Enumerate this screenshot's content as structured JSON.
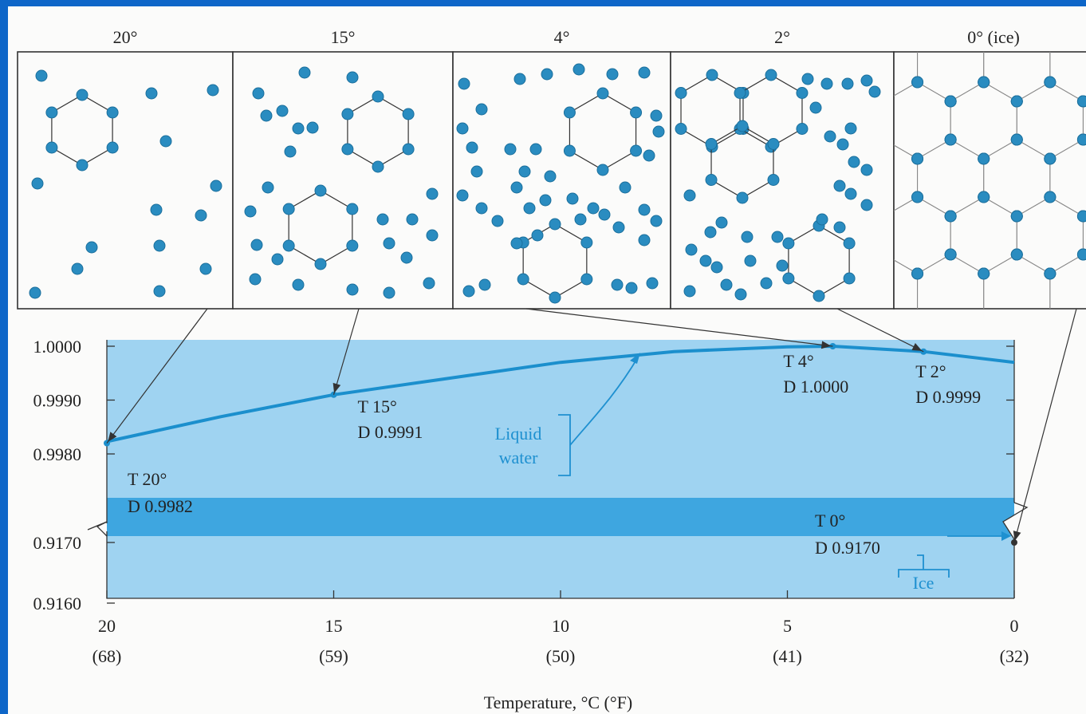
{
  "chart_data": {
    "type": "line",
    "panels": [
      {
        "label": "20°"
      },
      {
        "label": "15°"
      },
      {
        "label": "4°"
      },
      {
        "label": "2°"
      },
      {
        "label": "0° (ice)"
      }
    ],
    "x_ticks": [
      {
        "value": 20,
        "label": "20",
        "sub": "(68)"
      },
      {
        "value": 15,
        "label": "15",
        "sub": "(59)"
      },
      {
        "value": 10,
        "label": "10",
        "sub": "(50)"
      },
      {
        "value": 5,
        "label": "5",
        "sub": "(41)"
      },
      {
        "value": 0,
        "label": "0",
        "sub": "(32)"
      }
    ],
    "y_ticks_upper": [
      "1.0000",
      "0.9990",
      "0.9980"
    ],
    "y_ticks_lower": [
      "0.9170",
      "0.9160"
    ],
    "xlabel": "Temperature, °C (°F)",
    "xlim": [
      20,
      0
    ],
    "ylim_upper": [
      0.998,
      1.0
    ],
    "ylim_lower": [
      0.916,
      0.917
    ],
    "axis_break": true,
    "colors": {
      "curve": "#1b8fcd",
      "band": "#9fd3f1",
      "ice_band": "#3ea6e0",
      "molecule": "#2a8cc0",
      "annotation": "#1e90d0"
    },
    "series": [
      {
        "values": [
          {
            "x": 20,
            "y": 0.99823
          },
          {
            "x": 17.5,
            "y": 0.99869
          },
          {
            "x": 15,
            "y": 0.9991
          },
          {
            "x": 12.5,
            "y": 0.9994
          },
          {
            "x": 10,
            "y": 0.9997
          },
          {
            "x": 7.5,
            "y": 0.9999
          },
          {
            "x": 5,
            "y": 0.99999
          },
          {
            "x": 4,
            "y": 1.0
          },
          {
            "x": 2,
            "y": 0.9999
          },
          {
            "x": 0,
            "y": 0.9997
          }
        ]
      }
    ],
    "points": [
      {
        "x": 20,
        "y": 0.9982,
        "t_label": "T 20°",
        "d_label": "D 0.9982"
      },
      {
        "x": 15,
        "y": 0.9991,
        "t_label": "T 15°",
        "d_label": "D 0.9991"
      },
      {
        "x": 4,
        "y": 1.0,
        "t_label": "T 4°",
        "d_label": "D 1.0000"
      },
      {
        "x": 2,
        "y": 0.9999,
        "t_label": "T 2°",
        "d_label": "D 0.9999"
      },
      {
        "x": 0,
        "y": 0.917,
        "t_label": "T 0°",
        "d_label": "D 0.9170"
      }
    ],
    "annotations": {
      "liquid_line1": "Liquid",
      "liquid_line2": "water",
      "ice": "Ice"
    }
  }
}
